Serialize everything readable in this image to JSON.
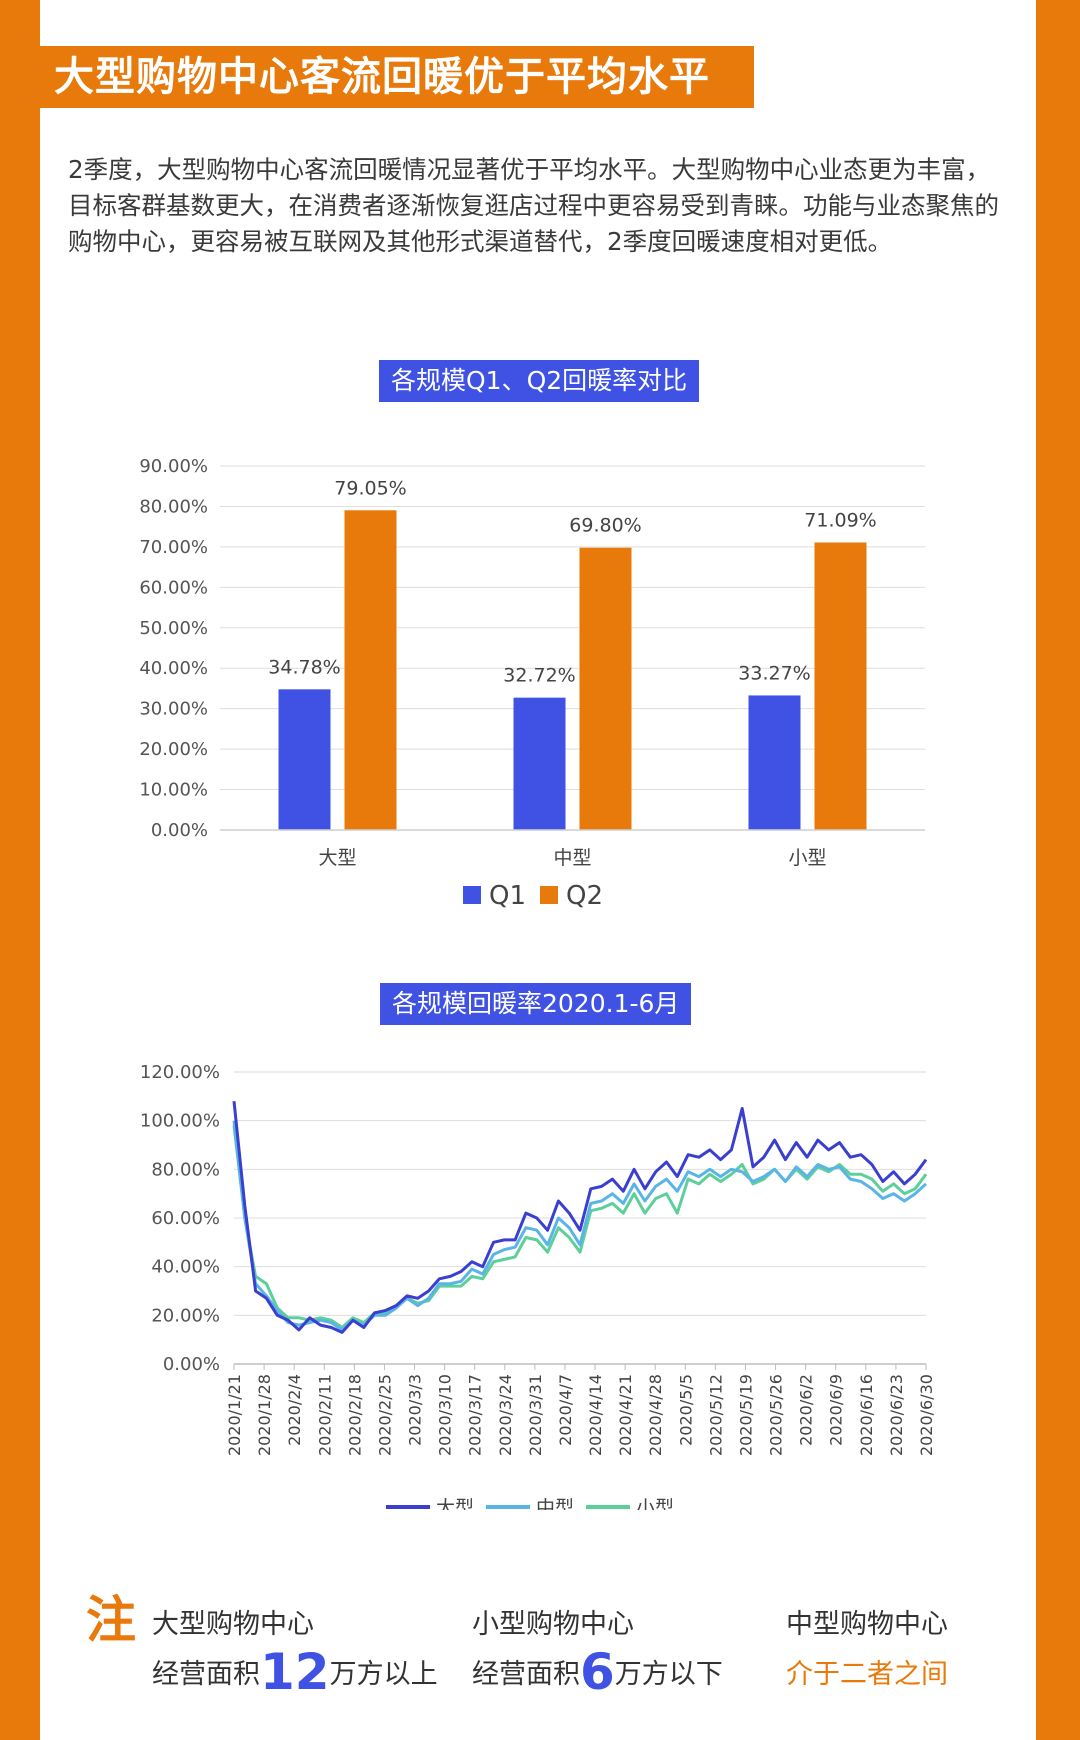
{
  "page": {
    "title": "大型购物中心客流回暖优于平均水平",
    "intro": "2季度，大型购物中心客流回暖情况显著优于平均水平。大型购物中心业态更为丰富，目标客群基数更大，在消费者逐渐恢复逛店过程中更容易受到青睐。功能与业态聚焦的购物中心，更容易被互联网及其他形式渠道替代，2季度回暖速度相对更低。"
  },
  "colors": {
    "orange": "#e8790b",
    "blue": "#3f52e3",
    "large_line": "#3b3fd0",
    "medium_line": "#5ab4e6",
    "small_line": "#5ccf9a"
  },
  "chart_data": [
    {
      "type": "bar",
      "title": "各规模Q1、Q2回暖率对比",
      "categories": [
        "大型",
        "中型",
        "小型"
      ],
      "series": [
        {
          "name": "Q1",
          "values": [
            34.78,
            32.72,
            33.27
          ]
        },
        {
          "name": "Q2",
          "values": [
            79.05,
            69.8,
            71.09
          ]
        }
      ],
      "value_labels": [
        [
          "34.78%",
          "32.72%",
          "33.27%"
        ],
        [
          "79.05%",
          "69.80%",
          "71.09%"
        ]
      ],
      "yticks": [
        "0.00%",
        "10.00%",
        "20.00%",
        "30.00%",
        "40.00%",
        "50.00%",
        "60.00%",
        "70.00%",
        "80.00%",
        "90.00%"
      ],
      "ylim": [
        0,
        90
      ],
      "legend": "bottom"
    },
    {
      "type": "line",
      "title": "各规模回暖率2020.1-6月",
      "xticks": [
        "2020/1/21",
        "2020/1/28",
        "2020/2/4",
        "2020/2/11",
        "2020/2/18",
        "2020/2/25",
        "2020/3/3",
        "2020/3/10",
        "2020/3/17",
        "2020/3/24",
        "2020/3/31",
        "2020/4/7",
        "2020/4/14",
        "2020/4/21",
        "2020/4/28",
        "2020/5/5",
        "2020/5/12",
        "2020/5/19",
        "2020/5/26",
        "2020/6/2",
        "2020/6/9",
        "2020/6/16",
        "2020/6/23",
        "2020/6/30"
      ],
      "yticks": [
        "0.00%",
        "20.00%",
        "40.00%",
        "60.00%",
        "80.00%",
        "100.00%",
        "120.00%"
      ],
      "ylim": [
        0,
        120
      ],
      "series": [
        {
          "name": "大型",
          "values": [
            108,
            65,
            30,
            27,
            20,
            18,
            14,
            19,
            16,
            15,
            13,
            18,
            15,
            21,
            22,
            24,
            28,
            27,
            30,
            35,
            36,
            38,
            42,
            40,
            50,
            51,
            51,
            62,
            60,
            55,
            67,
            62,
            55,
            72,
            73,
            76,
            71,
            80,
            72,
            79,
            83,
            77,
            86,
            85,
            88,
            84,
            88,
            105,
            81,
            85,
            92,
            84,
            91,
            85,
            92,
            88,
            91,
            85,
            86,
            82,
            75,
            79,
            74,
            78,
            84
          ]
        },
        {
          "name": "中型",
          "values": [
            100,
            60,
            33,
            28,
            22,
            17,
            16,
            17,
            18,
            17,
            14,
            18,
            16,
            20,
            20,
            23,
            27,
            24,
            27,
            33,
            33,
            34,
            39,
            37,
            45,
            47,
            48,
            56,
            55,
            49,
            60,
            56,
            49,
            66,
            67,
            70,
            66,
            74,
            67,
            73,
            76,
            71,
            79,
            77,
            80,
            77,
            80,
            79,
            75,
            77,
            80,
            75,
            81,
            77,
            82,
            80,
            81,
            76,
            75,
            72,
            68,
            70,
            67,
            70,
            74
          ]
        },
        {
          "name": "小型",
          "values": [
            98,
            60,
            36,
            33,
            23,
            19,
            19,
            18,
            19,
            18,
            15,
            19,
            17,
            21,
            21,
            24,
            27,
            25,
            26,
            32,
            32,
            32,
            36,
            35,
            42,
            43,
            44,
            52,
            51,
            46,
            56,
            52,
            46,
            63,
            64,
            66,
            62,
            70,
            62,
            68,
            70,
            62,
            76,
            74,
            78,
            75,
            78,
            82,
            74,
            76,
            80,
            75,
            80,
            76,
            81,
            79,
            82,
            78,
            78,
            76,
            71,
            74,
            70,
            72,
            78
          ]
        }
      ],
      "legend": "bottom"
    }
  ],
  "note": {
    "mark": "注",
    "large": {
      "name": "大型购物中心",
      "prefix": "经营面积",
      "num": "12",
      "suffix": "万方以上"
    },
    "small": {
      "name": "小型购物中心",
      "prefix": "经营面积",
      "num": "6",
      "suffix": "万方以下"
    },
    "medium": {
      "name": "中型购物中心",
      "desc": "介于二者之间"
    }
  }
}
